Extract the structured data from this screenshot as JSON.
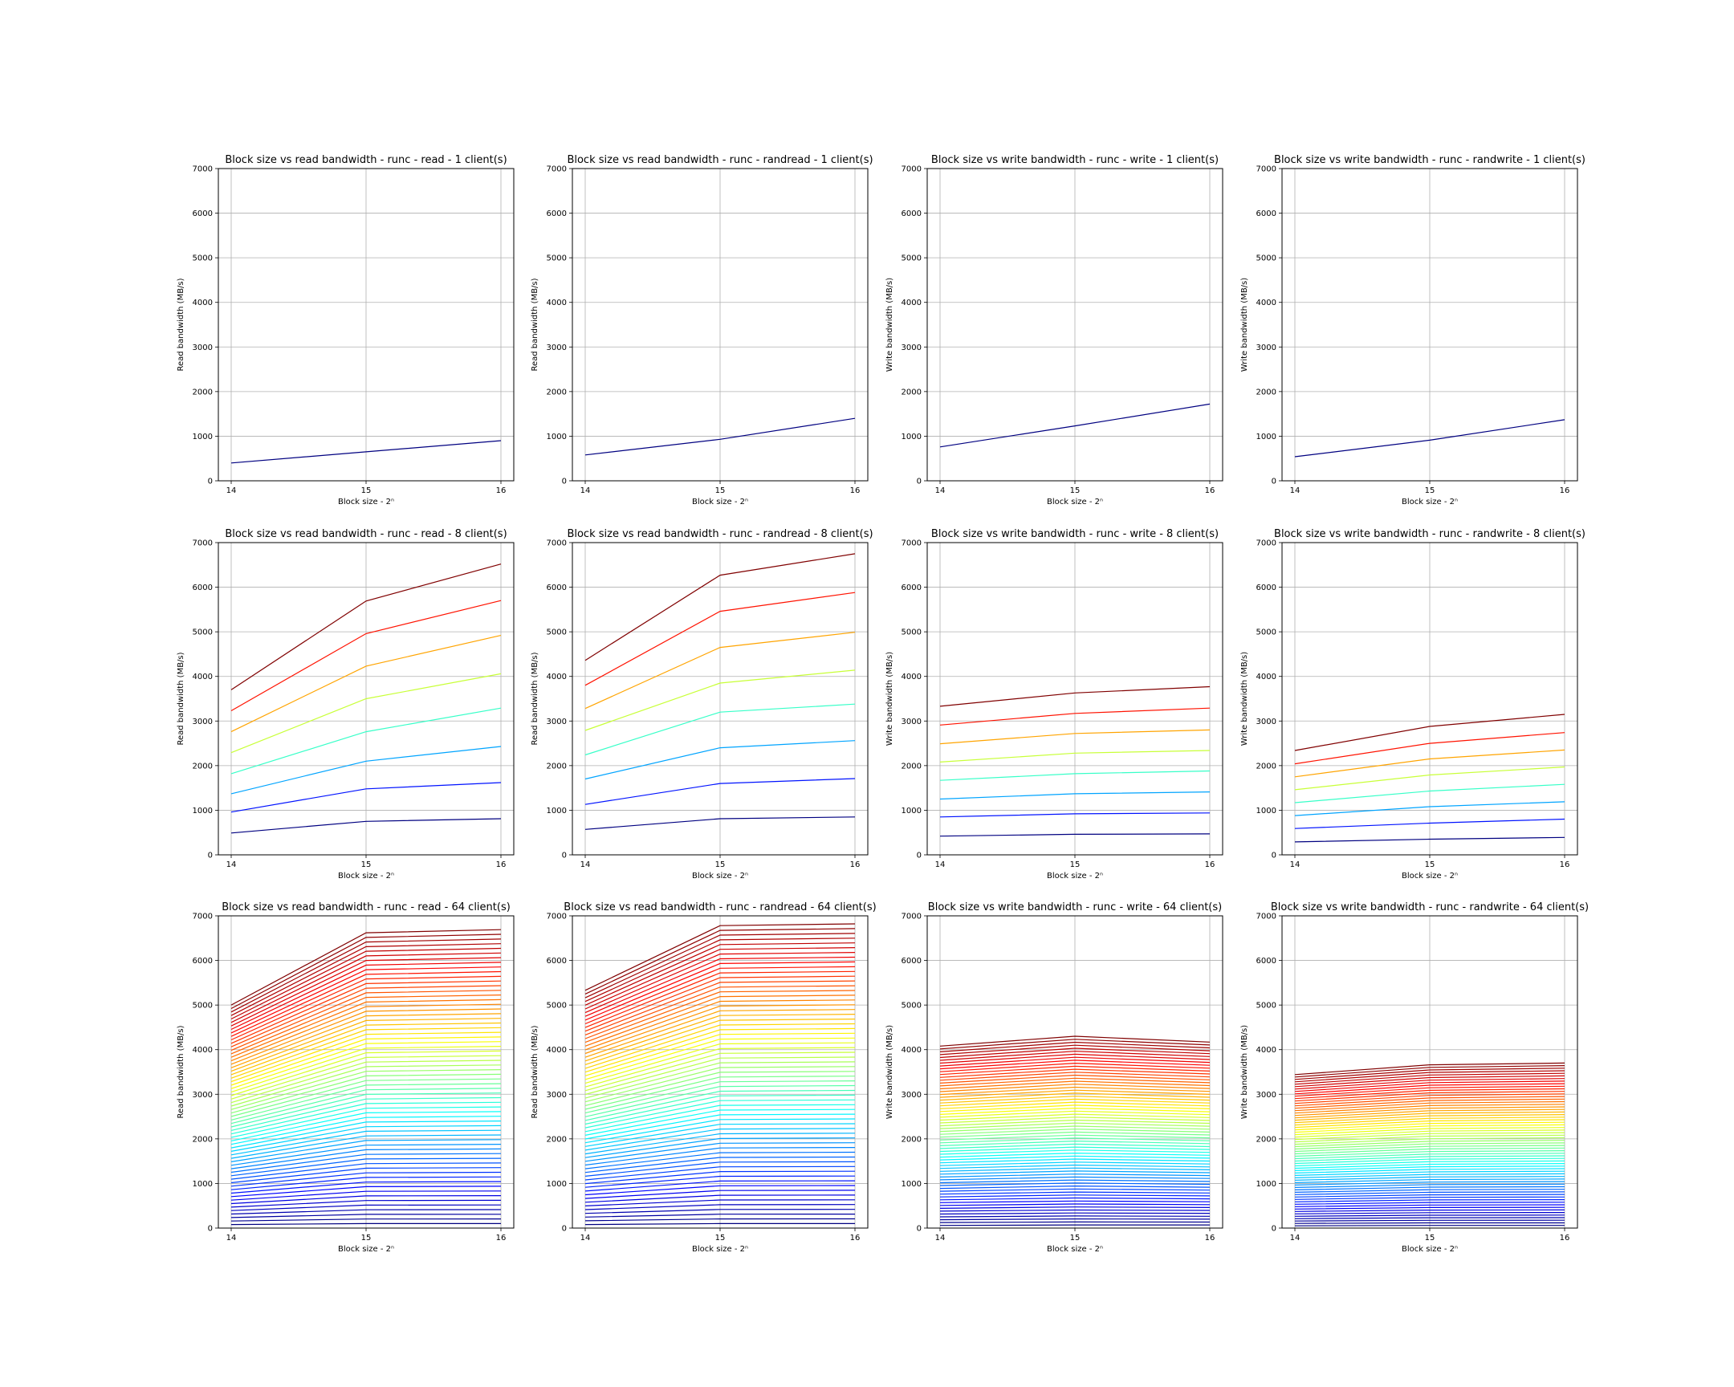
{
  "chart_data": [
    {
      "type": "line",
      "title": "Block size vs read bandwidth - runc - read - 1 client(s)",
      "xlabel": "Block size - 2ⁿ",
      "ylabel": "Read bandwidth (MB/s)",
      "x": [
        14,
        15,
        16
      ],
      "ylim": [
        0,
        7000
      ],
      "yticks": [
        0,
        1000,
        2000,
        3000,
        4000,
        5000,
        6000,
        7000
      ],
      "grid": true,
      "colormap": "jet",
      "series": [
        {
          "values": [
            400,
            650,
            900
          ]
        }
      ]
    },
    {
      "type": "line",
      "title": "Block size vs read bandwidth - runc - randread - 1 client(s)",
      "xlabel": "Block size - 2ⁿ",
      "ylabel": "Read bandwidth (MB/s)",
      "x": [
        14,
        15,
        16
      ],
      "ylim": [
        0,
        7000
      ],
      "yticks": [
        0,
        1000,
        2000,
        3000,
        4000,
        5000,
        6000,
        7000
      ],
      "grid": true,
      "colormap": "jet",
      "series": [
        {
          "values": [
            580,
            930,
            1400
          ]
        }
      ]
    },
    {
      "type": "line",
      "title": "Block size vs write bandwidth - runc - write - 1 client(s)",
      "xlabel": "Block size - 2ⁿ",
      "ylabel": "Write bandwidth (MB/s)",
      "x": [
        14,
        15,
        16
      ],
      "ylim": [
        0,
        7000
      ],
      "yticks": [
        0,
        1000,
        2000,
        3000,
        4000,
        5000,
        6000,
        7000
      ],
      "grid": true,
      "colormap": "jet",
      "series": [
        {
          "values": [
            760,
            1230,
            1720
          ]
        }
      ]
    },
    {
      "type": "line",
      "title": "Block size vs write bandwidth - runc - randwrite - 1 client(s)",
      "xlabel": "Block size - 2ⁿ",
      "ylabel": "Write bandwidth (MB/s)",
      "x": [
        14,
        15,
        16
      ],
      "ylim": [
        0,
        7000
      ],
      "yticks": [
        0,
        1000,
        2000,
        3000,
        4000,
        5000,
        6000,
        7000
      ],
      "grid": true,
      "colormap": "jet",
      "series": [
        {
          "values": [
            540,
            910,
            1370
          ]
        }
      ]
    },
    {
      "type": "line",
      "title": "Block size vs read bandwidth - runc - read - 8 client(s)",
      "xlabel": "Block size - 2ⁿ",
      "ylabel": "Read bandwidth (MB/s)",
      "x": [
        14,
        15,
        16
      ],
      "ylim": [
        0,
        7000
      ],
      "yticks": [
        0,
        1000,
        2000,
        3000,
        4000,
        5000,
        6000,
        7000
      ],
      "grid": true,
      "colormap": "jet",
      "series": [
        {
          "values": [
            490,
            750,
            810
          ]
        },
        {
          "values": [
            960,
            1480,
            1620
          ]
        },
        {
          "values": [
            1370,
            2100,
            2430
          ]
        },
        {
          "values": [
            1820,
            2760,
            3290
          ]
        },
        {
          "values": [
            2290,
            3500,
            4060
          ]
        },
        {
          "values": [
            2760,
            4230,
            4920
          ]
        },
        {
          "values": [
            3230,
            4960,
            5700
          ]
        },
        {
          "values": [
            3700,
            5690,
            6520
          ]
        }
      ]
    },
    {
      "type": "line",
      "title": "Block size vs read bandwidth - runc - randread - 8 client(s)",
      "xlabel": "Block size - 2ⁿ",
      "ylabel": "Read bandwidth (MB/s)",
      "x": [
        14,
        15,
        16
      ],
      "ylim": [
        0,
        7000
      ],
      "yticks": [
        0,
        1000,
        2000,
        3000,
        4000,
        5000,
        6000,
        7000
      ],
      "grid": true,
      "colormap": "jet",
      "series": [
        {
          "values": [
            570,
            810,
            850
          ]
        },
        {
          "values": [
            1130,
            1600,
            1710
          ]
        },
        {
          "values": [
            1700,
            2400,
            2560
          ]
        },
        {
          "values": [
            2240,
            3200,
            3380
          ]
        },
        {
          "values": [
            2790,
            3850,
            4140
          ]
        },
        {
          "values": [
            3280,
            4650,
            4990
          ]
        },
        {
          "values": [
            3800,
            5460,
            5880
          ]
        },
        {
          "values": [
            4360,
            6270,
            6750
          ]
        }
      ]
    },
    {
      "type": "line",
      "title": "Block size vs write bandwidth - runc - write - 8 client(s)",
      "xlabel": "Block size - 2ⁿ",
      "ylabel": "Write bandwidth (MB/s)",
      "x": [
        14,
        15,
        16
      ],
      "ylim": [
        0,
        7000
      ],
      "yticks": [
        0,
        1000,
        2000,
        3000,
        4000,
        5000,
        6000,
        7000
      ],
      "grid": true,
      "colormap": "jet",
      "series": [
        {
          "values": [
            420,
            460,
            470
          ]
        },
        {
          "values": [
            850,
            920,
            940
          ]
        },
        {
          "values": [
            1250,
            1370,
            1410
          ]
        },
        {
          "values": [
            1670,
            1820,
            1880
          ]
        },
        {
          "values": [
            2080,
            2280,
            2340
          ]
        },
        {
          "values": [
            2490,
            2720,
            2800
          ]
        },
        {
          "values": [
            2910,
            3170,
            3290
          ]
        },
        {
          "values": [
            3330,
            3630,
            3770
          ]
        }
      ]
    },
    {
      "type": "line",
      "title": "Block size vs write bandwidth - runc - randwrite - 8 client(s)",
      "xlabel": "Block size - 2ⁿ",
      "ylabel": "Write bandwidth (MB/s)",
      "x": [
        14,
        15,
        16
      ],
      "ylim": [
        0,
        7000
      ],
      "yticks": [
        0,
        1000,
        2000,
        3000,
        4000,
        5000,
        6000,
        7000
      ],
      "grid": true,
      "colormap": "jet",
      "series": [
        {
          "values": [
            290,
            350,
            390
          ]
        },
        {
          "values": [
            590,
            710,
            800
          ]
        },
        {
          "values": [
            880,
            1080,
            1190
          ]
        },
        {
          "values": [
            1170,
            1430,
            1580
          ]
        },
        {
          "values": [
            1460,
            1790,
            1970
          ]
        },
        {
          "values": [
            1750,
            2150,
            2350
          ]
        },
        {
          "values": [
            2040,
            2500,
            2740
          ]
        },
        {
          "values": [
            2340,
            2880,
            3150
          ]
        }
      ]
    },
    {
      "type": "line",
      "title": "Block size vs read bandwidth - runc - read - 64 client(s)",
      "xlabel": "Block size - 2ⁿ",
      "ylabel": "Read bandwidth (MB/s)",
      "x": [
        14,
        15,
        16
      ],
      "ylim": [
        0,
        7000
      ],
      "yticks": [
        0,
        1000,
        2000,
        3000,
        4000,
        5000,
        6000,
        7000
      ],
      "grid": true,
      "colormap": "jet",
      "series_count": 64,
      "series_ranges": {
        "x14": [
          80,
          5000
        ],
        "x15": [
          100,
          6620
        ],
        "x16": [
          100,
          6690
        ]
      }
    },
    {
      "type": "line",
      "title": "Block size vs read bandwidth - runc - randread - 64 client(s)",
      "xlabel": "Block size - 2ⁿ",
      "ylabel": "Read bandwidth (MB/s)",
      "x": [
        14,
        15,
        16
      ],
      "ylim": [
        0,
        7000
      ],
      "yticks": [
        0,
        1000,
        2000,
        3000,
        4000,
        5000,
        6000,
        7000
      ],
      "grid": true,
      "colormap": "jet",
      "series_count": 64,
      "series_ranges": {
        "x14": [
          80,
          5330
        ],
        "x15": [
          100,
          6780
        ],
        "x16": [
          100,
          6820
        ]
      }
    },
    {
      "type": "line",
      "title": "Block size vs write bandwidth - runc - write - 64 client(s)",
      "xlabel": "Block size - 2ⁿ",
      "ylabel": "Write bandwidth (MB/s)",
      "x": [
        14,
        15,
        16
      ],
      "ylim": [
        0,
        7000
      ],
      "yticks": [
        0,
        1000,
        2000,
        3000,
        4000,
        5000,
        6000,
        7000
      ],
      "grid": true,
      "colormap": "jet",
      "series_count": 64,
      "series_ranges": {
        "x14": [
          60,
          4080
        ],
        "x15": [
          70,
          4300
        ],
        "x16": [
          70,
          4170
        ]
      }
    },
    {
      "type": "line",
      "title": "Block size vs write bandwidth - runc - randwrite - 64 client(s)",
      "xlabel": "Block size - 2ⁿ",
      "ylabel": "Write bandwidth (MB/s)",
      "x": [
        14,
        15,
        16
      ],
      "ylim": [
        0,
        7000
      ],
      "yticks": [
        0,
        1000,
        2000,
        3000,
        4000,
        5000,
        6000,
        7000
      ],
      "grid": true,
      "colormap": "jet",
      "series_count": 64,
      "series_ranges": {
        "x14": [
          50,
          3440
        ],
        "x15": [
          60,
          3660
        ],
        "x16": [
          60,
          3700
        ]
      }
    }
  ]
}
